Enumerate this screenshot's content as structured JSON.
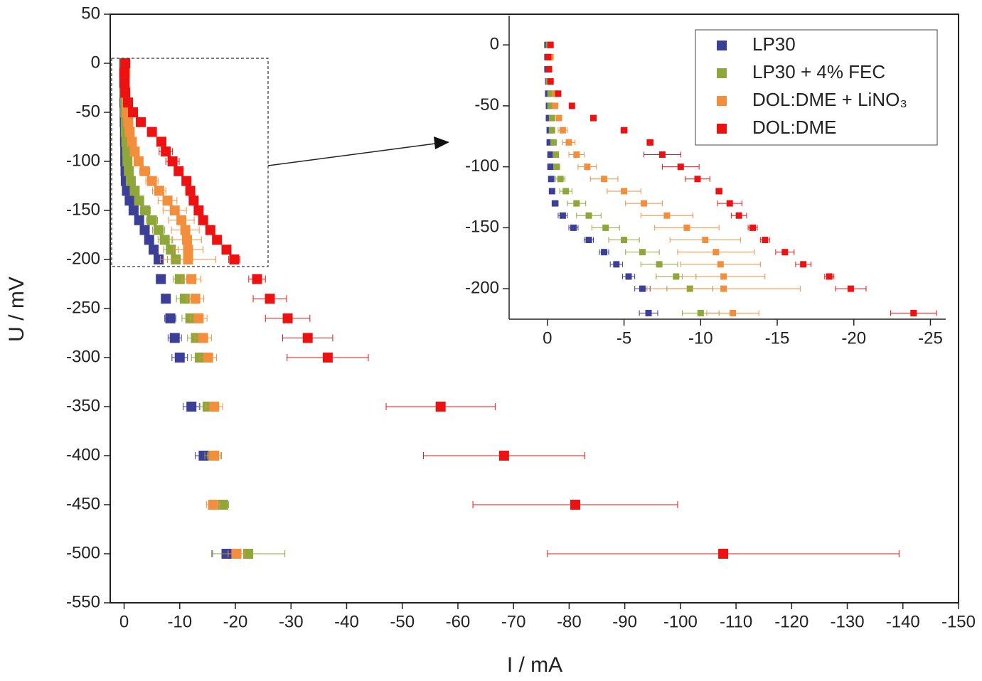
{
  "chart_data": {
    "type": "scatter",
    "x_label": "I / mA",
    "y_label": "U / mV",
    "xlim": [
      2.5,
      -150
    ],
    "ylim": [
      -550,
      50
    ],
    "xticks": [
      0,
      -10,
      -20,
      -30,
      -40,
      -50,
      -60,
      -70,
      -80,
      -90,
      -100,
      -110,
      -120,
      -130,
      -140,
      -150
    ],
    "yticks": [
      50,
      0,
      -50,
      -100,
      -150,
      -200,
      -250,
      -300,
      -350,
      -400,
      -450,
      -500,
      -550
    ],
    "y": [
      0,
      -10,
      -20,
      -30,
      -40,
      -50,
      -60,
      -70,
      -80,
      -90,
      -100,
      -110,
      -120,
      -130,
      -140,
      -150,
      -160,
      -170,
      -180,
      -190,
      -200,
      -220,
      -240,
      -260,
      -280,
      -300,
      -350,
      -400,
      -450,
      -500
    ],
    "series": [
      {
        "name": "LP30",
        "color": "#3b3f98",
        "values": [
          0,
          0,
          0,
          -0.05,
          -0.05,
          -0.1,
          -0.1,
          -0.15,
          -0.15,
          -0.2,
          -0.2,
          -0.25,
          -0.3,
          -0.5,
          -1.0,
          -1.7,
          -2.7,
          -3.7,
          -4.5,
          -5.3,
          -6.2,
          -6.6,
          -7.5,
          -8.3,
          -9.1,
          -10.0,
          -12.1,
          -14.3,
          null,
          -18.4
        ],
        "errors": [
          0.1,
          0.1,
          0.1,
          0.1,
          0.1,
          0.1,
          0.1,
          0.1,
          0.1,
          0.1,
          0.1,
          0.1,
          0.1,
          0.2,
          0.3,
          0.3,
          0.3,
          0.3,
          0.4,
          0.4,
          0.5,
          0.6,
          0.8,
          1.0,
          1.2,
          1.4,
          1.5,
          1.5,
          null,
          2.5
        ]
      },
      {
        "name": "LP30 + 4% FEC",
        "color": "#8ea63a",
        "values": [
          -0.1,
          -0.1,
          -0.1,
          -0.1,
          -0.2,
          -0.2,
          -0.3,
          -0.3,
          -0.4,
          -0.55,
          -0.6,
          -0.85,
          -1.2,
          -1.9,
          -2.7,
          -3.8,
          -5.0,
          -6.2,
          -7.3,
          -8.4,
          -9.3,
          -10.0,
          -10.9,
          -11.9,
          -12.9,
          -13.6,
          -15.0,
          -16.0,
          -17.8,
          -22.3
        ],
        "errors": [
          0.1,
          0.1,
          0.1,
          0.1,
          0.1,
          0.1,
          0.1,
          0.1,
          0.1,
          0.1,
          0.2,
          0.3,
          0.4,
          0.6,
          0.8,
          0.9,
          1.0,
          1.1,
          1.2,
          1.3,
          1.5,
          1.2,
          1.5,
          1.5,
          1.5,
          1.5,
          1.5,
          1.5,
          1.0,
          6.6
        ]
      },
      {
        "name": "DOL:DME + LiNO₃",
        "color": "#f28e3c",
        "values": [
          -0.2,
          -0.2,
          -0.1,
          -0.2,
          -0.5,
          -0.5,
          -0.75,
          -1.0,
          -1.4,
          -1.9,
          -2.6,
          -3.7,
          -5.0,
          -6.3,
          -7.8,
          -9.1,
          -10.3,
          -11.0,
          -11.3,
          -11.5,
          -11.5,
          -12.1,
          -12.8,
          -13.4,
          -14.2,
          -15.1,
          -16.2,
          -16.2,
          -16.0,
          -20.2
        ],
        "errors": [
          0.1,
          0.1,
          0.1,
          0.1,
          0.1,
          0.1,
          0.1,
          0.3,
          0.4,
          0.5,
          0.6,
          0.9,
          1.1,
          1.2,
          1.7,
          2.1,
          2.3,
          2.5,
          2.6,
          2.7,
          5.0,
          1.7,
          1.5,
          1.5,
          1.5,
          1.5,
          1.5,
          1.2,
          1.2,
          1.5
        ]
      },
      {
        "name": "DOL:DME",
        "color": "#ee1111",
        "values": [
          -0.2,
          -0.05,
          -0.1,
          -0.2,
          -0.7,
          -1.6,
          -3.0,
          -5.0,
          -6.7,
          -7.5,
          -8.7,
          -9.8,
          -11.2,
          -11.9,
          -12.5,
          -13.4,
          -14.2,
          -15.5,
          -16.7,
          -18.4,
          -19.8,
          -23.9,
          -26.2,
          -29.4,
          -33.0,
          -36.6,
          -56.9,
          -68.3,
          -81.1,
          -107.7
        ],
        "errors": [
          0.1,
          0.1,
          0.1,
          0.1,
          0.1,
          0.1,
          0.1,
          0.2,
          0.2,
          1.2,
          1.2,
          0.8,
          0.2,
          0.8,
          0.5,
          0.3,
          0.3,
          0.6,
          0.5,
          0.3,
          1.0,
          1.5,
          3.0,
          4.0,
          4.5,
          7.3,
          9.8,
          14.5,
          18.4,
          31.6
        ]
      }
    ],
    "inset": {
      "xlim": [
        2.5,
        -26
      ],
      "ylim": [
        -225,
        24
      ],
      "xticks": [
        0,
        -5,
        -10,
        -15,
        -20,
        -25
      ],
      "yticks": [
        0,
        -50,
        -100,
        -150,
        -200
      ],
      "legend": "upper right"
    }
  }
}
